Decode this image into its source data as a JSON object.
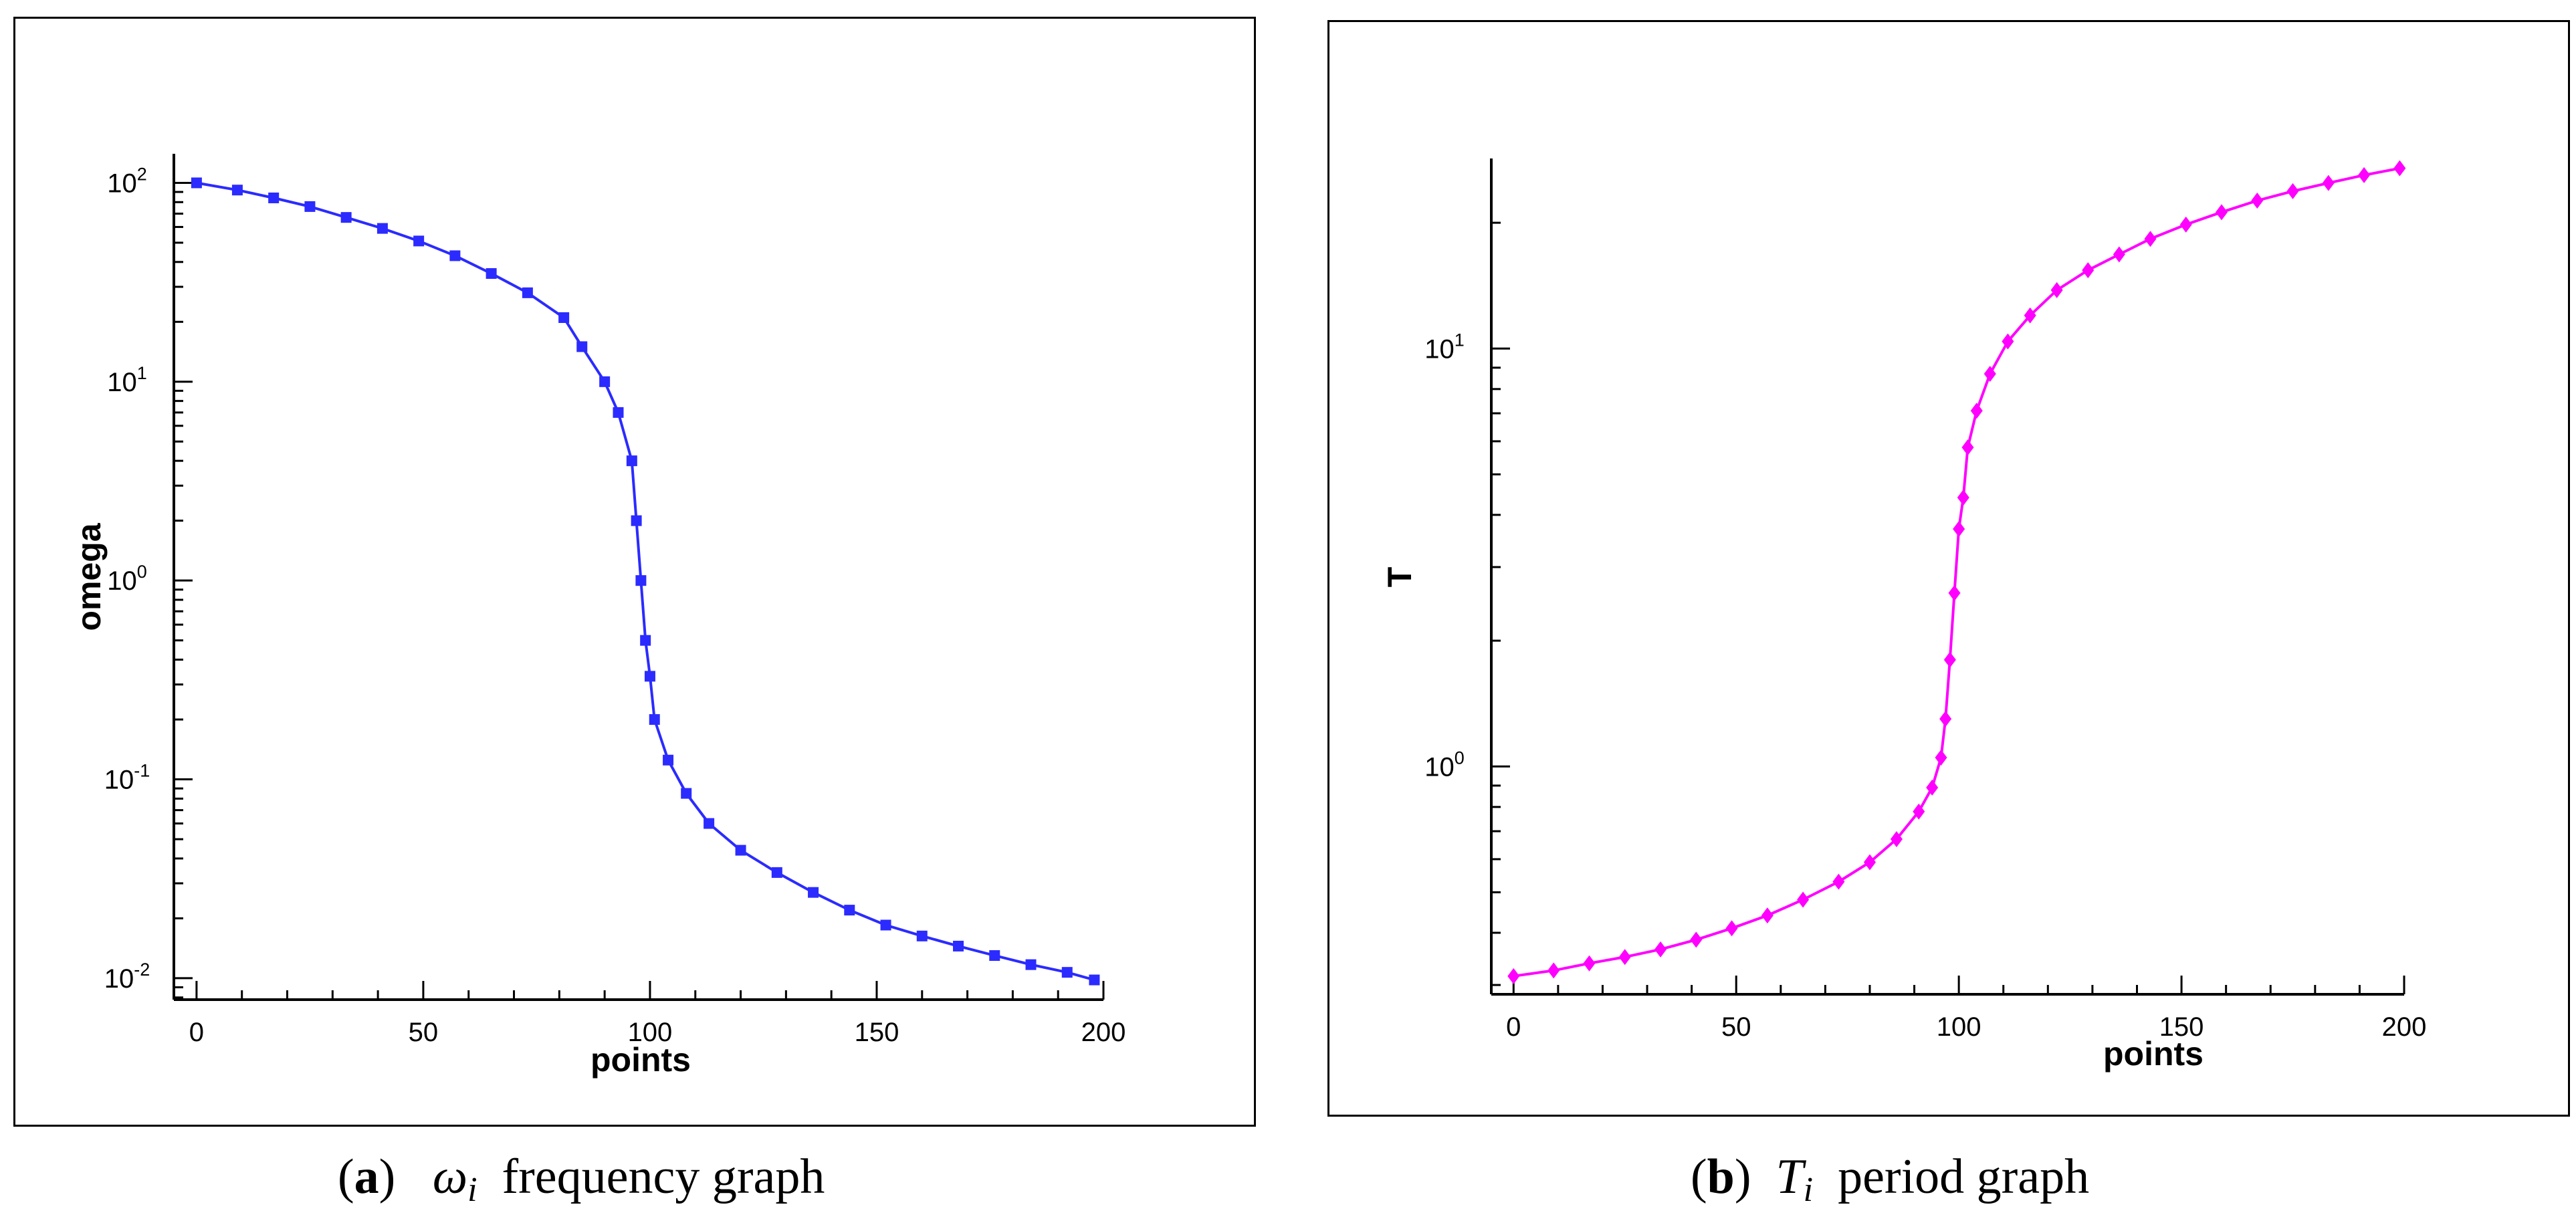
{
  "chart_data": [
    {
      "panel": "a",
      "type": "line",
      "yscale": "log",
      "title": "",
      "xlabel": "points",
      "ylabel": "omega",
      "xlim": [
        -5,
        200
      ],
      "ylim": [
        0.0078,
        140
      ],
      "xticks": [
        0,
        50,
        100,
        150,
        200
      ],
      "xtick_labels": [
        "0",
        "50",
        "100",
        "150",
        "200"
      ],
      "yticks": [
        0.01,
        0.1,
        1,
        10,
        100
      ],
      "ytick_labels": [
        {
          "base": "10",
          "exp": "-2"
        },
        {
          "base": "10",
          "exp": "-1"
        },
        {
          "base": "10",
          "exp": "0"
        },
        {
          "base": "10",
          "exp": "1"
        },
        {
          "base": "10",
          "exp": "2"
        }
      ],
      "marker": "square",
      "color": "#2b2bff",
      "series": [
        {
          "name": "omega",
          "x": [
            0,
            9,
            17,
            25,
            33,
            41,
            49,
            57,
            65,
            73,
            81,
            85,
            90,
            93,
            96,
            97,
            98,
            99,
            100,
            101,
            104,
            108,
            113,
            120,
            128,
            136,
            144,
            152,
            160,
            168,
            176,
            184,
            192,
            198
          ],
          "y": [
            100,
            92,
            84,
            76,
            67,
            59,
            51,
            43,
            35,
            28,
            21,
            15,
            10,
            7,
            4,
            2,
            1,
            0.5,
            0.33,
            0.2,
            0.125,
            0.085,
            0.06,
            0.044,
            0.034,
            0.027,
            0.022,
            0.0185,
            0.0163,
            0.0145,
            0.013,
            0.0117,
            0.0107,
            0.0098
          ]
        }
      ]
    },
    {
      "panel": "b",
      "type": "line",
      "yscale": "log",
      "title": "",
      "xlabel": "points",
      "ylabel": "T",
      "xlim": [
        -5,
        200
      ],
      "ylim": [
        0.285,
        28.5
      ],
      "xticks": [
        0,
        50,
        100,
        150,
        200
      ],
      "xtick_labels": [
        "0",
        "50",
        "100",
        "150",
        "200"
      ],
      "yticks": [
        1,
        10
      ],
      "ytick_labels": [
        {
          "base": "10",
          "exp": "0"
        },
        {
          "base": "10",
          "exp": "1"
        }
      ],
      "marker": "diamond",
      "color": "#ff00ff",
      "series": [
        {
          "name": "T",
          "x": [
            0,
            9,
            17,
            25,
            33,
            41,
            49,
            57,
            65,
            73,
            80,
            86,
            91,
            94,
            96,
            97,
            98,
            99,
            100,
            101,
            102,
            104,
            107,
            111,
            116,
            122,
            129,
            136,
            143,
            151,
            159,
            167,
            175,
            183,
            191,
            199
          ],
          "y": [
            0.315,
            0.325,
            0.338,
            0.35,
            0.365,
            0.385,
            0.41,
            0.44,
            0.48,
            0.53,
            0.59,
            0.67,
            0.78,
            0.89,
            1.05,
            1.3,
            1.8,
            2.6,
            3.7,
            4.4,
            5.8,
            7.1,
            8.7,
            10.4,
            12.0,
            13.8,
            15.4,
            16.8,
            18.3,
            19.8,
            21.2,
            22.6,
            23.8,
            24.9,
            26.0,
            27.0
          ]
        }
      ]
    }
  ],
  "captions": [
    {
      "tag": "a",
      "symbol": "ω",
      "subscript": "i",
      "text": "frequency graph"
    },
    {
      "tag": "b",
      "symbol": "T",
      "subscript": "i",
      "text": "period graph"
    }
  ]
}
